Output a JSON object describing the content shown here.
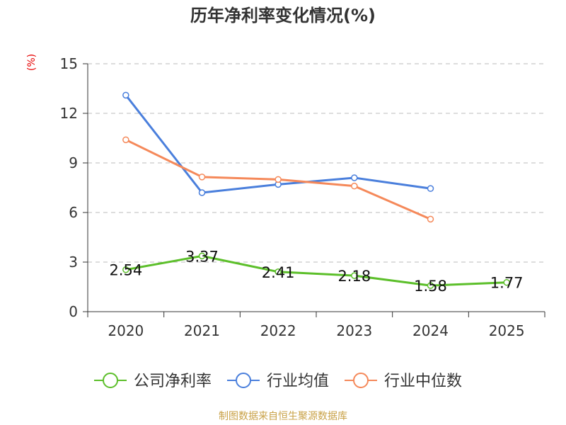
{
  "chart_title": "历年净利率变化情况(%)",
  "y_unit": "(%)",
  "source": "制图数据来自恒生聚源数据库",
  "colors": {
    "title": "#333333",
    "unit": "#e60000",
    "source": "#c9a248",
    "axis": "#333333",
    "grid": "#bbbbbb"
  },
  "chart_data": {
    "type": "line",
    "title": "历年净利率变化情况(%)",
    "ylabel": "(%)",
    "xlabel": "",
    "categories": [
      "2020",
      "2021",
      "2022",
      "2023",
      "2024",
      "2025"
    ],
    "ylim": [
      0,
      15
    ],
    "yticks": [
      0,
      3,
      6,
      9,
      12,
      15
    ],
    "grid": true,
    "legend_position": "bottom",
    "series": [
      {
        "name": "公司净利率",
        "color": "#5cbf2a",
        "values": [
          2.54,
          3.37,
          2.41,
          2.18,
          1.58,
          1.77
        ],
        "labels": [
          "2.54",
          "3.37",
          "2.41",
          "2.18",
          "1.58",
          "1.77"
        ]
      },
      {
        "name": "行业均值",
        "color": "#4a7fdc",
        "values": [
          13.1,
          7.2,
          7.7,
          8.1,
          7.45,
          null
        ]
      },
      {
        "name": "行业中位数",
        "color": "#f5895a",
        "values": [
          10.4,
          8.15,
          8.0,
          7.6,
          5.6,
          null
        ]
      }
    ]
  }
}
